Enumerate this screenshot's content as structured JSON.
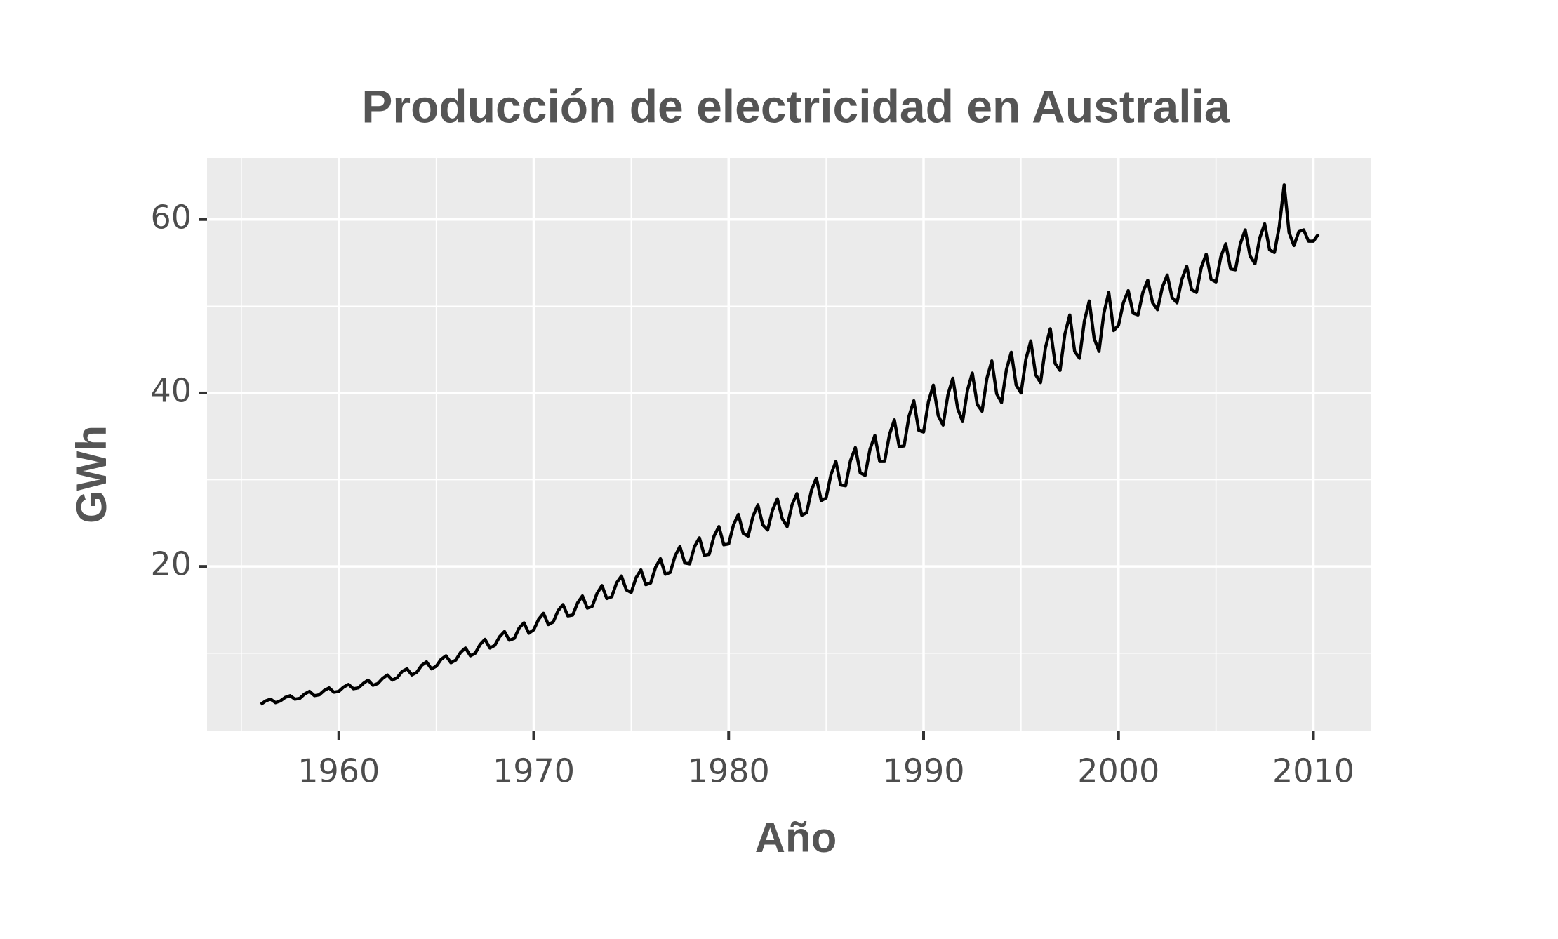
{
  "chart_data": {
    "type": "line",
    "title": "Producción de electricidad en Australia",
    "x_label": "Año",
    "y_label": "GWh",
    "x": [
      1956,
      1956.25,
      1956.5,
      1956.75,
      1957,
      1957.25,
      1957.5,
      1957.75,
      1958,
      1958.25,
      1958.5,
      1958.75,
      1959,
      1959.25,
      1959.5,
      1959.75,
      1960,
      1960.25,
      1960.5,
      1960.75,
      1961,
      1961.25,
      1961.5,
      1961.75,
      1962,
      1962.25,
      1962.5,
      1962.75,
      1963,
      1963.25,
      1963.5,
      1963.75,
      1964,
      1964.25,
      1964.5,
      1964.75,
      1965,
      1965.25,
      1965.5,
      1965.75,
      1966,
      1966.25,
      1966.5,
      1966.75,
      1967,
      1967.25,
      1967.5,
      1967.75,
      1968,
      1968.25,
      1968.5,
      1968.75,
      1969,
      1969.25,
      1969.5,
      1969.75,
      1970,
      1970.25,
      1970.5,
      1970.75,
      1971,
      1971.25,
      1971.5,
      1971.75,
      1972,
      1972.25,
      1972.5,
      1972.75,
      1973,
      1973.25,
      1973.5,
      1973.75,
      1974,
      1974.25,
      1974.5,
      1974.75,
      1975,
      1975.25,
      1975.5,
      1975.75,
      1976,
      1976.25,
      1976.5,
      1976.75,
      1977,
      1977.25,
      1977.5,
      1977.75,
      1978,
      1978.25,
      1978.5,
      1978.75,
      1979,
      1979.25,
      1979.5,
      1979.75,
      1980,
      1980.25,
      1980.5,
      1980.75,
      1981,
      1981.25,
      1981.5,
      1981.75,
      1982,
      1982.25,
      1982.5,
      1982.75,
      1983,
      1983.25,
      1983.5,
      1983.75,
      1984,
      1984.25,
      1984.5,
      1984.75,
      1985,
      1985.25,
      1985.5,
      1985.75,
      1986,
      1986.25,
      1986.5,
      1986.75,
      1987,
      1987.25,
      1987.5,
      1987.75,
      1988,
      1988.25,
      1988.5,
      1988.75,
      1989,
      1989.25,
      1989.5,
      1989.75,
      1990,
      1990.25,
      1990.5,
      1990.75,
      1991,
      1991.25,
      1991.5,
      1991.75,
      1992,
      1992.25,
      1992.5,
      1992.75,
      1993,
      1993.25,
      1993.5,
      1993.75,
      1994,
      1994.25,
      1994.5,
      1994.75,
      1995,
      1995.25,
      1995.5,
      1995.75,
      1996,
      1996.25,
      1996.5,
      1996.75,
      1997,
      1997.25,
      1997.5,
      1997.75,
      1998,
      1998.25,
      1998.5,
      1998.75,
      1999,
      1999.25,
      1999.5,
      1999.75,
      2000,
      2000.25,
      2000.5,
      2000.75,
      2001,
      2001.25,
      2001.5,
      2001.75,
      2002,
      2002.25,
      2002.5,
      2002.75,
      2003,
      2003.25,
      2003.5,
      2003.75,
      2004,
      2004.25,
      2004.5,
      2004.75,
      2005,
      2005.25,
      2005.5,
      2005.75,
      2006,
      2006.25,
      2006.5,
      2006.75,
      2007,
      2007.25,
      2007.5,
      2007.75,
      2008,
      2008.25,
      2008.5,
      2008.75,
      2009,
      2009.25,
      2009.5,
      2009.75,
      2010,
      2010.25
    ],
    "values": [
      4.1,
      4.5,
      4.7,
      4.3,
      4.5,
      4.9,
      5.1,
      4.7,
      4.8,
      5.3,
      5.6,
      5.1,
      5.2,
      5.7,
      6.0,
      5.5,
      5.6,
      6.1,
      6.4,
      5.9,
      6.0,
      6.5,
      6.9,
      6.3,
      6.5,
      7.1,
      7.5,
      6.9,
      7.2,
      7.9,
      8.2,
      7.5,
      7.8,
      8.6,
      9.0,
      8.2,
      8.5,
      9.3,
      9.7,
      8.9,
      9.2,
      10.1,
      10.6,
      9.7,
      10.0,
      11.0,
      11.6,
      10.6,
      10.9,
      11.9,
      12.5,
      11.5,
      11.7,
      12.9,
      13.5,
      12.3,
      12.7,
      13.9,
      14.6,
      13.3,
      13.6,
      14.9,
      15.6,
      14.3,
      14.4,
      15.8,
      16.6,
      15.2,
      15.4,
      16.9,
      17.8,
      16.3,
      16.5,
      18.1,
      18.9,
      17.3,
      17.0,
      18.7,
      19.6,
      17.9,
      18.1,
      19.9,
      20.9,
      19.1,
      19.3,
      21.2,
      22.3,
      20.4,
      20.3,
      22.3,
      23.3,
      21.3,
      21.4,
      23.5,
      24.6,
      22.5,
      22.6,
      24.8,
      26.0,
      23.8,
      23.5,
      25.8,
      27.1,
      24.8,
      24.2,
      26.5,
      27.8,
      25.5,
      24.6,
      27.1,
      28.4,
      25.9,
      26.2,
      28.8,
      30.2,
      27.6,
      27.9,
      30.6,
      32.1,
      29.4,
      29.3,
      32.2,
      33.7,
      30.8,
      30.5,
      33.5,
      35.1,
      32.1,
      32.1,
      35.2,
      36.9,
      33.8,
      33.9,
      37.3,
      39.1,
      35.7,
      35.5,
      39.0,
      40.9,
      37.4,
      36.3,
      39.8,
      41.7,
      38.2,
      36.7,
      40.3,
      42.3,
      38.7,
      37.9,
      41.7,
      43.7,
      39.9,
      38.9,
      42.7,
      44.7,
      40.9,
      40.0,
      43.9,
      46.0,
      42.1,
      41.2,
      45.2,
      47.4,
      43.4,
      42.6,
      46.8,
      49.0,
      44.8,
      44.0,
      48.3,
      50.6,
      46.3,
      44.8,
      49.2,
      51.6,
      47.2,
      47.8,
      50.4,
      51.8,
      49.2,
      49.0,
      51.6,
      53.0,
      50.4,
      49.6,
      52.2,
      53.6,
      51.0,
      50.4,
      53.1,
      54.6,
      51.9,
      51.6,
      54.5,
      56.0,
      53.1,
      52.8,
      55.7,
      57.2,
      54.3,
      54.2,
      57.2,
      58.8,
      55.8,
      54.9,
      57.9,
      59.5,
      56.5,
      56.2,
      59.2,
      64.0,
      58.5,
      57.0,
      58.6,
      58.8,
      57.5,
      57.5,
      58.3
    ],
    "color": "#000000",
    "xlim": [
      1953.24,
      2012.97
    ],
    "ylim": [
      1.0,
      67.1
    ],
    "xticks": [
      1960,
      1970,
      1980,
      1990,
      2000,
      2010
    ],
    "yticks": [
      20,
      40,
      60
    ],
    "x_minor_ticks": [
      1955,
      1965,
      1975,
      1985,
      1995,
      2005
    ],
    "y_minor_ticks": [
      10,
      30,
      50
    ],
    "grid": true
  }
}
